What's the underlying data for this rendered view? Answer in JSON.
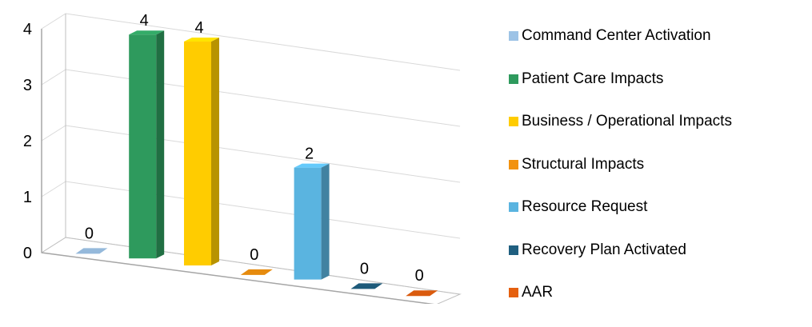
{
  "chart_data": {
    "type": "bar",
    "view": "3d-column",
    "categories": [
      "Command Center Activation",
      "Patient Care Impacts",
      "Business / Operational Impacts",
      "Structural Impacts",
      "Resource Request",
      "Recovery Plan Activated",
      "AAR"
    ],
    "values": [
      0,
      4,
      4,
      0,
      2,
      0,
      0
    ],
    "data_labels": [
      "0",
      "4",
      "4",
      "0",
      "2",
      "0",
      "0"
    ],
    "ylim": [
      0,
      4
    ],
    "y_ticks": [
      "0",
      "1",
      "2",
      "3",
      "4"
    ],
    "grid": true,
    "legend_position": "right",
    "colors": [
      "#9DC3E6",
      "#2E9A5D",
      "#FFCC00",
      "#F2920F",
      "#5AB4E0",
      "#1F5F80",
      "#E5600F"
    ]
  }
}
